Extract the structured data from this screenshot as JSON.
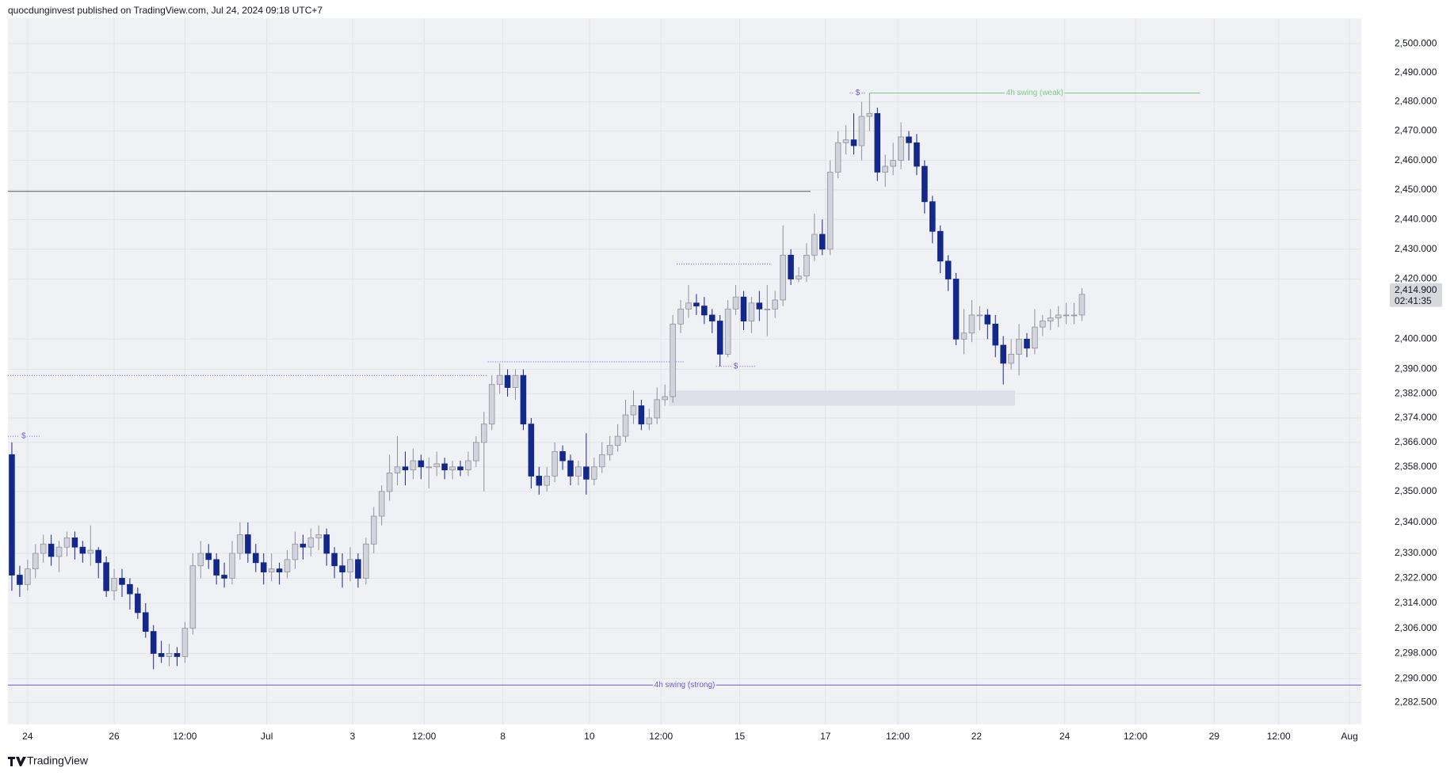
{
  "chart_data": {
    "type": "candlestick",
    "header": "quocdunginvest published on TradingView.com, Jul 24, 2024 09:18 UTC+7",
    "brand": "TradingView",
    "log_scale": true,
    "grid": true,
    "up_color": "#d1d4dc",
    "up_border": "#8e929b",
    "down_color": "#13288a",
    "xlim": [
      -0.5,
      171.5
    ],
    "xticks": [
      {
        "value": 2,
        "label": "24"
      },
      {
        "value": 13,
        "label": "26"
      },
      {
        "value": 22,
        "label": "12:00"
      },
      {
        "value": 32.4,
        "label": "Jul"
      },
      {
        "value": 43.3,
        "label": "3"
      },
      {
        "value": 52.4,
        "label": "12:00"
      },
      {
        "value": 62.4,
        "label": "8"
      },
      {
        "value": 73.4,
        "label": "10"
      },
      {
        "value": 82.5,
        "label": "12:00"
      },
      {
        "value": 92.5,
        "label": "15"
      },
      {
        "value": 103.4,
        "label": "17"
      },
      {
        "value": 112.6,
        "label": "12:00"
      },
      {
        "value": 122.6,
        "label": "22"
      },
      {
        "value": 133.8,
        "label": "24"
      },
      {
        "value": 142.8,
        "label": "12:00"
      },
      {
        "value": 152.8,
        "label": "29"
      },
      {
        "value": 161,
        "label": "12:00"
      },
      {
        "value": 170,
        "label": "Aug"
      }
    ],
    "ylim": [
      2275.6,
      2508.8
    ],
    "yticks": [
      {
        "value": 2500,
        "label": "2,500.000"
      },
      {
        "value": 2490,
        "label": "2,490.000"
      },
      {
        "value": 2480,
        "label": "2,480.000"
      },
      {
        "value": 2470,
        "label": "2,470.000"
      },
      {
        "value": 2460,
        "label": "2,460.000"
      },
      {
        "value": 2450,
        "label": "2,450.000"
      },
      {
        "value": 2440,
        "label": "2,440.000"
      },
      {
        "value": 2430,
        "label": "2,430.000"
      },
      {
        "value": 2420,
        "label": "2,420.000"
      },
      {
        "value": 2400,
        "label": "2,400.000"
      },
      {
        "value": 2390,
        "label": "2,390.000"
      },
      {
        "value": 2382,
        "label": "2,382.000"
      },
      {
        "value": 2374,
        "label": "2,374.000"
      },
      {
        "value": 2366,
        "label": "2,366.000"
      },
      {
        "value": 2358,
        "label": "2,358.000"
      },
      {
        "value": 2350,
        "label": "2,350.000"
      },
      {
        "value": 2340,
        "label": "2,340.000"
      },
      {
        "value": 2330,
        "label": "2,330.000"
      },
      {
        "value": 2322,
        "label": "2,322.000"
      },
      {
        "value": 2314,
        "label": "2,314.000"
      },
      {
        "value": 2306,
        "label": "2,306.000"
      },
      {
        "value": 2298,
        "label": "2,298.000"
      },
      {
        "value": 2290,
        "label": "2,290.000"
      },
      {
        "value": 2282.5,
        "label": "2,282.500"
      }
    ],
    "last_price": {
      "value": 2414.9,
      "label": "2,414.900"
    },
    "countdown": "02:41:35",
    "candles": [
      [
        2362,
        2366,
        2318,
        2323
      ],
      [
        2323,
        2326,
        2316,
        2320
      ],
      [
        2320,
        2328,
        2318,
        2325
      ],
      [
        2325,
        2333,
        2322,
        2330
      ],
      [
        2330,
        2336,
        2327,
        2333
      ],
      [
        2333,
        2336,
        2326,
        2329
      ],
      [
        2329,
        2334,
        2324,
        2332
      ],
      [
        2332,
        2337,
        2329,
        2335
      ],
      [
        2335,
        2337,
        2328,
        2332
      ],
      [
        2332,
        2334,
        2327,
        2330
      ],
      [
        2330,
        2339,
        2326,
        2331
      ],
      [
        2331,
        2332,
        2322,
        2327
      ],
      [
        2327,
        2329,
        2316,
        2318
      ],
      [
        2318,
        2325,
        2315,
        2322
      ],
      [
        2322,
        2325,
        2316,
        2320
      ],
      [
        2320,
        2322,
        2312,
        2317
      ],
      [
        2317,
        2319,
        2309,
        2311
      ],
      [
        2311,
        2314,
        2303,
        2305
      ],
      [
        2305,
        2307,
        2293,
        2298
      ],
      [
        2298,
        2302,
        2295,
        2297
      ],
      [
        2297,
        2301,
        2294,
        2298
      ],
      [
        2298,
        2300,
        2294,
        2297
      ],
      [
        2297,
        2308,
        2295,
        2306
      ],
      [
        2306,
        2330,
        2304,
        2326
      ],
      [
        2326,
        2334,
        2322,
        2330
      ],
      [
        2330,
        2333,
        2325,
        2328
      ],
      [
        2328,
        2330,
        2320,
        2323
      ],
      [
        2323,
        2327,
        2319,
        2322
      ],
      [
        2322,
        2334,
        2320,
        2330
      ],
      [
        2330,
        2340,
        2328,
        2336
      ],
      [
        2336,
        2340,
        2327,
        2330
      ],
      [
        2330,
        2333,
        2324,
        2327
      ],
      [
        2327,
        2330,
        2320,
        2324
      ],
      [
        2324,
        2330,
        2321,
        2325
      ],
      [
        2325,
        2327,
        2320,
        2324
      ],
      [
        2324,
        2331,
        2322,
        2328
      ],
      [
        2328,
        2337,
        2325,
        2333
      ],
      [
        2333,
        2336,
        2328,
        2332
      ],
      [
        2332,
        2338,
        2329,
        2335
      ],
      [
        2335,
        2339,
        2331,
        2336
      ],
      [
        2336,
        2338,
        2326,
        2330
      ],
      [
        2330,
        2332,
        2322,
        2326
      ],
      [
        2326,
        2330,
        2319,
        2324
      ],
      [
        2324,
        2332,
        2321,
        2328
      ],
      [
        2328,
        2330,
        2319,
        2322
      ],
      [
        2322,
        2335,
        2320,
        2333
      ],
      [
        2333,
        2345,
        2330,
        2342
      ],
      [
        2342,
        2352,
        2339,
        2350
      ],
      [
        2350,
        2362,
        2347,
        2356
      ],
      [
        2356,
        2368,
        2352,
        2358
      ],
      [
        2358,
        2363,
        2352,
        2357
      ],
      [
        2357,
        2364,
        2354,
        2360
      ],
      [
        2360,
        2362,
        2354,
        2358
      ],
      [
        2358,
        2361,
        2351,
        2358
      ],
      [
        2358,
        2363,
        2355,
        2359
      ],
      [
        2359,
        2361,
        2354,
        2357
      ],
      [
        2357,
        2360,
        2354,
        2358
      ],
      [
        2358,
        2360,
        2355,
        2357
      ],
      [
        2357,
        2363,
        2355,
        2360
      ],
      [
        2360,
        2368,
        2358,
        2366
      ],
      [
        2366,
        2376,
        2350,
        2372
      ],
      [
        2372,
        2388,
        2370,
        2385
      ],
      [
        2385,
        2392,
        2382,
        2388
      ],
      [
        2388,
        2390,
        2381,
        2384
      ],
      [
        2384,
        2390,
        2380,
        2388
      ],
      [
        2388,
        2390,
        2370,
        2372
      ],
      [
        2372,
        2374,
        2351,
        2355
      ],
      [
        2355,
        2358,
        2349,
        2352
      ],
      [
        2352,
        2358,
        2350,
        2355
      ],
      [
        2355,
        2366,
        2353,
        2363
      ],
      [
        2363,
        2365,
        2357,
        2360
      ],
      [
        2360,
        2362,
        2352,
        2355
      ],
      [
        2355,
        2360,
        2352,
        2358
      ],
      [
        2358,
        2369,
        2349,
        2354
      ],
      [
        2354,
        2361,
        2352,
        2358
      ],
      [
        2358,
        2366,
        2356,
        2362
      ],
      [
        2362,
        2368,
        2360,
        2365
      ],
      [
        2365,
        2372,
        2363,
        2368
      ],
      [
        2368,
        2380,
        2366,
        2375
      ],
      [
        2375,
        2383,
        2372,
        2378
      ],
      [
        2378,
        2380,
        2370,
        2372
      ],
      [
        2372,
        2377,
        2370,
        2374
      ],
      [
        2374,
        2384,
        2372,
        2380
      ],
      [
        2380,
        2385,
        2378,
        2381
      ],
      [
        2381,
        2408,
        2379,
        2405
      ],
      [
        2405,
        2413,
        2402,
        2410
      ],
      [
        2410,
        2418,
        2407,
        2412
      ],
      [
        2412,
        2415,
        2408,
        2411
      ],
      [
        2411,
        2414,
        2405,
        2408
      ],
      [
        2408,
        2410,
        2402,
        2406
      ],
      [
        2406,
        2408,
        2391,
        2395
      ],
      [
        2395,
        2413,
        2394,
        2410
      ],
      [
        2410,
        2418,
        2408,
        2414
      ],
      [
        2414,
        2416,
        2403,
        2406
      ],
      [
        2406,
        2414,
        2402,
        2412
      ],
      [
        2412,
        2416,
        2406,
        2410
      ],
      [
        2410,
        2418,
        2401,
        2410
      ],
      [
        2410,
        2416,
        2407,
        2413
      ],
      [
        2413,
        2438,
        2411,
        2428
      ],
      [
        2428,
        2430,
        2418,
        2420
      ],
      [
        2420,
        2424,
        2419,
        2421
      ],
      [
        2421,
        2432,
        2419,
        2428
      ],
      [
        2428,
        2442,
        2426,
        2435
      ],
      [
        2435,
        2440,
        2428,
        2430
      ],
      [
        2430,
        2460,
        2428,
        2456
      ],
      [
        2456,
        2470,
        2454,
        2466
      ],
      [
        2466,
        2472,
        2462,
        2467
      ],
      [
        2467,
        2476,
        2462,
        2465
      ],
      [
        2465,
        2480,
        2460,
        2475
      ],
      [
        2475,
        2483,
        2470,
        2476
      ],
      [
        2476,
        2478,
        2453,
        2456
      ],
      [
        2456,
        2462,
        2451,
        2458
      ],
      [
        2458,
        2466,
        2455,
        2460
      ],
      [
        2460,
        2473,
        2457,
        2468
      ],
      [
        2468,
        2470,
        2460,
        2466
      ],
      [
        2466,
        2469,
        2455,
        2458
      ],
      [
        2458,
        2460,
        2442,
        2446
      ],
      [
        2446,
        2448,
        2432,
        2436
      ],
      [
        2436,
        2438,
        2422,
        2426
      ],
      [
        2426,
        2428,
        2416,
        2420
      ],
      [
        2420,
        2422,
        2398,
        2400
      ],
      [
        2400,
        2410,
        2395,
        2402
      ],
      [
        2402,
        2413,
        2399,
        2408
      ],
      [
        2408,
        2411,
        2403,
        2408
      ],
      [
        2408,
        2410,
        2400,
        2405
      ],
      [
        2405,
        2408,
        2394,
        2398
      ],
      [
        2398,
        2401,
        2385,
        2392
      ],
      [
        2392,
        2400,
        2390,
        2395
      ],
      [
        2395,
        2405,
        2388,
        2400
      ],
      [
        2400,
        2402,
        2394,
        2397
      ],
      [
        2397,
        2410,
        2395,
        2404
      ],
      [
        2404,
        2408,
        2401,
        2406
      ],
      [
        2406,
        2410,
        2403,
        2407
      ],
      [
        2407,
        2411,
        2404,
        2408
      ],
      [
        2408,
        2412,
        2405,
        2408
      ],
      [
        2408,
        2412,
        2405,
        2408
      ],
      [
        2408,
        2417,
        2406,
        2414.9
      ]
    ],
    "zone": {
      "from": 83.5,
      "to": 127.5,
      "low": 2378,
      "high": 2383,
      "color": "#dedfea"
    },
    "levels": [
      {
        "price": 2449.5,
        "from": -0.5,
        "to": 101.5,
        "color": "#555555",
        "style": "solid"
      },
      {
        "price": 2483,
        "from": 109,
        "to": 151,
        "color": "#7fc98b",
        "style": "solid",
        "label": "4h swing (weak)"
      },
      {
        "price": 2288,
        "from": -0.5,
        "to": 171.5,
        "color": "#6a5fd0",
        "style": "solid",
        "label": "4h swing (strong)"
      },
      {
        "price": 2388,
        "from": -0.5,
        "to": 60.5,
        "color": "#6a5fd0",
        "style": "dotted"
      },
      {
        "price": 2392.5,
        "from": 60.5,
        "to": 85.5,
        "color": "#6a5fd0",
        "style": "dotted"
      },
      {
        "price": 2425,
        "from": 84.5,
        "to": 96.5,
        "color": "#6a5fd0",
        "style": "dotted"
      },
      {
        "price": 2391,
        "from": 89.5,
        "to": 94.5,
        "color": "#6a5fd0",
        "style": "dotted",
        "label": "$"
      },
      {
        "price": 2368,
        "from": -0.5,
        "to": 3.5,
        "color": "#6a5fd0",
        "style": "dotted",
        "label": "$"
      },
      {
        "price": 2483,
        "from": 106.5,
        "to": 108.5,
        "color": "#6a5fd0",
        "style": "dotted",
        "label": "$"
      }
    ]
  }
}
